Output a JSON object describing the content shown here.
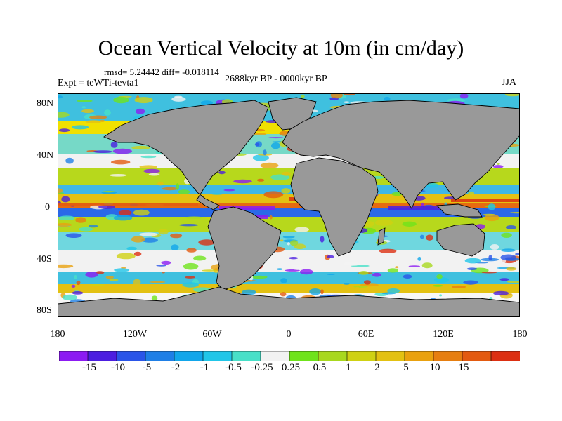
{
  "title": "Ocean Vertical Velocity at 10m (in cm/day)",
  "stats": "rmsd= 5.24442  diff= -0.018114",
  "experiment": "Expt = teWTi-tevta1",
  "period": "2688kyr BP - 0000kyr BP",
  "season": "JJA",
  "map": {
    "lat_labels": [
      "80N",
      "40N",
      "0",
      "40S",
      "80S"
    ],
    "lon_labels": [
      "180",
      "120W",
      "60W",
      "0",
      "60E",
      "120E",
      "180"
    ],
    "land_color": "#999999"
  },
  "colorbar": {
    "colors": [
      "#8c1bf2",
      "#4c1ee0",
      "#2a55e8",
      "#1f7fe6",
      "#12a6ea",
      "#21c6e8",
      "#48e0c8",
      "#f2f2f2",
      "#6fe31b",
      "#a8d81e",
      "#cfd113",
      "#e3c112",
      "#e9a10f",
      "#e67e10",
      "#e35a10",
      "#dc2f12"
    ],
    "labels": [
      "-15",
      "-10",
      "-5",
      "-2",
      "-1",
      "-0.5",
      "-0.25",
      "0.25",
      "0.5",
      "1",
      "2",
      "5",
      "10",
      "15"
    ]
  }
}
